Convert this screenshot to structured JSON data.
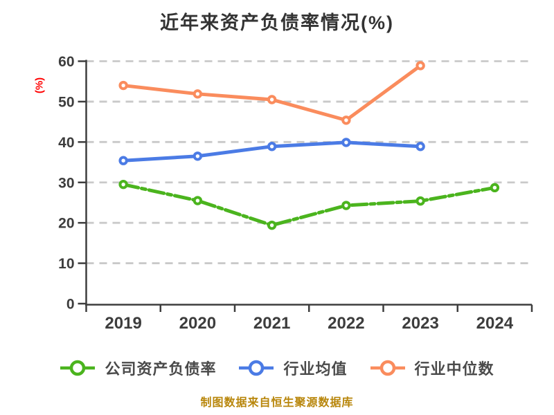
{
  "footer": {
    "text": "制图数据来自恒生聚源数据库"
  },
  "chart_data": {
    "type": "line",
    "title": "近年来资产负债率情况(%)",
    "xlabel": "",
    "ylabel": "(%)",
    "categories": [
      "2019",
      "2020",
      "2021",
      "2022",
      "2023",
      "2024"
    ],
    "series": [
      {
        "name": "公司资产负债率",
        "color": "#4BB41E",
        "line_style": "dashed",
        "values": [
          29.5,
          25.5,
          19.4,
          24.3,
          25.4,
          28.7
        ]
      },
      {
        "name": "行业均值",
        "color": "#4B7BE5",
        "line_style": "solid",
        "values": [
          35.4,
          36.5,
          38.9,
          39.9,
          38.9,
          null
        ]
      },
      {
        "name": "行业中位数",
        "color": "#FA8C5D",
        "line_style": "solid",
        "values": [
          54.0,
          51.9,
          50.5,
          45.4,
          58.9,
          null
        ]
      }
    ],
    "ylim": [
      0,
      60
    ],
    "ytick_step": 10,
    "grid": "horizontal dashed",
    "legend_position": "bottom",
    "marker": "circle-white-fill",
    "colors": {
      "grid": "#C9C9C9",
      "axis": "#3D3D3D",
      "tick_text": "#3D3D3D",
      "title_text": "#333333",
      "ylabel_text": "#FF0000",
      "legend_text": "#4A4A4A",
      "footer_text": "#B8860B",
      "marker_fill": "#FFFFFF"
    }
  }
}
